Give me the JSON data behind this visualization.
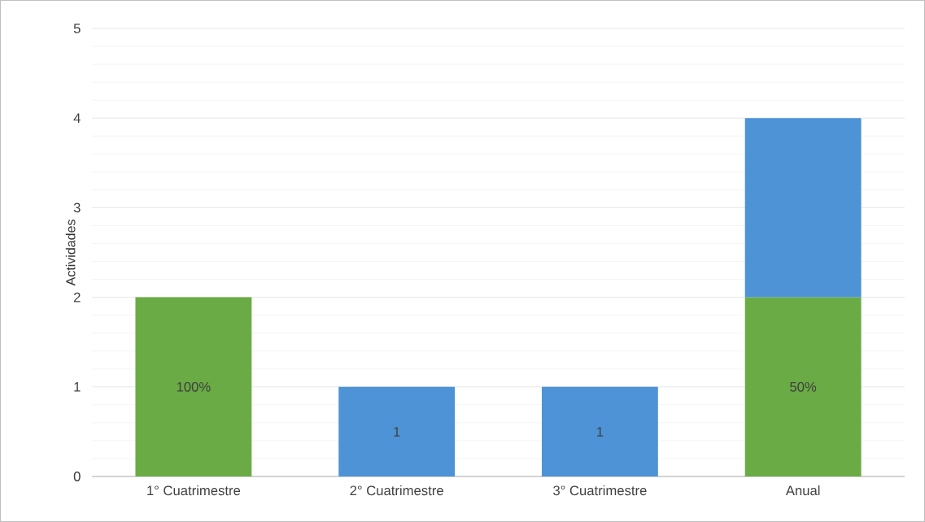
{
  "chart_data": {
    "type": "bar",
    "stacked": true,
    "ylabel": "Actividades",
    "categories": [
      "1° Cuatrimestre",
      "2° Cuatrimestre",
      "3° Cuatrimestre",
      "Anual"
    ],
    "series": [
      {
        "color": "#6aab45",
        "values": [
          2,
          0,
          0,
          2
        ]
      },
      {
        "color": "#4d93d6",
        "values": [
          0,
          1,
          1,
          2
        ],
        "value_labels": [
          null,
          "1",
          "1",
          null
        ]
      }
    ],
    "annotations": [
      "100%",
      "50%"
    ],
    "ylim": [
      0,
      5
    ],
    "yticks": [
      0,
      1,
      2,
      3,
      4,
      5
    ],
    "grid": "y",
    "legend": false
  }
}
